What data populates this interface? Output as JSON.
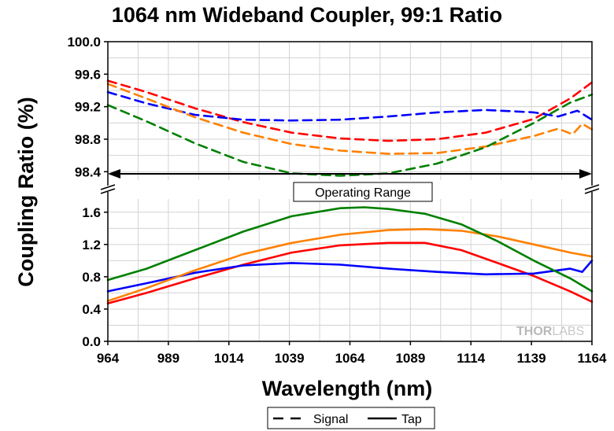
{
  "chart_data": {
    "type": "line",
    "title": "1064 nm Wideband Coupler, 99:1 Ratio",
    "xlabel": "Wavelength (nm)",
    "ylabel": "Coupling Ratio (%)",
    "xlim": [
      964,
      1164
    ],
    "x_ticks": [
      964,
      989,
      1014,
      1039,
      1064,
      1089,
      1114,
      1139,
      1164
    ],
    "x_tick_labels": [
      "964",
      "989",
      "1014",
      "1039",
      "1064",
      "1089",
      "1114",
      "1139",
      "1164"
    ],
    "grid": true,
    "broken_y_axis": true,
    "upper_panel": {
      "ylim": [
        98.2,
        100.0
      ],
      "y_ticks": [
        98.4,
        98.8,
        99.2,
        99.6,
        100.0
      ],
      "y_tick_labels": [
        "98.4",
        "98.8",
        "99.2",
        "99.6",
        "100.0"
      ]
    },
    "lower_panel": {
      "ylim": [
        0.0,
        1.9
      ],
      "y_ticks": [
        0.0,
        0.4,
        0.8,
        1.2,
        1.6
      ],
      "y_tick_labels": [
        "0.0",
        "0.4",
        "0.8",
        "1.2",
        "1.6"
      ]
    },
    "annotation": {
      "text": "Operating Range",
      "x_from": 964,
      "x_to": 1164
    },
    "legend": {
      "position": "bottom-center",
      "entries": [
        {
          "label": "Signal",
          "style": "dashed"
        },
        {
          "label": "Tap",
          "style": "solid"
        }
      ]
    },
    "watermark": {
      "part1": "THOR",
      "part2": "LABS"
    },
    "series": [
      {
        "color": "#ff0000",
        "style": "dashed",
        "panel": "upper",
        "x": [
          964,
          980,
          1000,
          1020,
          1040,
          1060,
          1080,
          1100,
          1120,
          1140,
          1155,
          1164
        ],
        "y": [
          99.52,
          99.38,
          99.18,
          99.01,
          98.88,
          98.81,
          98.78,
          98.8,
          98.88,
          99.05,
          99.3,
          99.5
        ]
      },
      {
        "color": "#0000ff",
        "style": "dashed",
        "panel": "upper",
        "x": [
          964,
          980,
          1000,
          1020,
          1040,
          1060,
          1080,
          1100,
          1120,
          1140,
          1150,
          1158,
          1164
        ],
        "y": [
          99.38,
          99.24,
          99.1,
          99.04,
          99.03,
          99.04,
          99.08,
          99.13,
          99.16,
          99.13,
          99.08,
          99.15,
          99.04
        ]
      },
      {
        "color": "#ff8000",
        "style": "dashed",
        "panel": "upper",
        "x": [
          964,
          980,
          1000,
          1020,
          1040,
          1060,
          1080,
          1100,
          1120,
          1140,
          1150,
          1156,
          1160,
          1164
        ],
        "y": [
          99.48,
          99.3,
          99.07,
          98.88,
          98.74,
          98.66,
          98.62,
          98.63,
          98.71,
          98.84,
          98.93,
          98.86,
          98.99,
          98.92
        ]
      },
      {
        "color": "#008000",
        "style": "dashed",
        "panel": "upper",
        "x": [
          964,
          980,
          1000,
          1020,
          1040,
          1060,
          1080,
          1100,
          1120,
          1140,
          1155,
          1164
        ],
        "y": [
          99.22,
          99.02,
          98.75,
          98.52,
          98.38,
          98.35,
          98.38,
          98.5,
          98.7,
          99.0,
          99.25,
          99.35
        ]
      },
      {
        "color": "#ff0000",
        "style": "solid",
        "panel": "lower",
        "x": [
          964,
          980,
          1000,
          1020,
          1040,
          1060,
          1080,
          1095,
          1110,
          1125,
          1140,
          1155,
          1164
        ],
        "y": [
          0.47,
          0.6,
          0.78,
          0.95,
          1.1,
          1.19,
          1.22,
          1.22,
          1.13,
          0.97,
          0.81,
          0.62,
          0.49
        ]
      },
      {
        "color": "#0000ff",
        "style": "solid",
        "panel": "lower",
        "x": [
          964,
          980,
          1000,
          1020,
          1040,
          1060,
          1080,
          1100,
          1120,
          1140,
          1155,
          1160,
          1164
        ],
        "y": [
          0.62,
          0.72,
          0.85,
          0.94,
          0.97,
          0.95,
          0.9,
          0.86,
          0.83,
          0.84,
          0.9,
          0.86,
          1.0
        ]
      },
      {
        "color": "#ff8000",
        "style": "solid",
        "panel": "lower",
        "x": [
          964,
          980,
          1000,
          1020,
          1040,
          1060,
          1080,
          1095,
          1110,
          1125,
          1140,
          1155,
          1164
        ],
        "y": [
          0.5,
          0.66,
          0.88,
          1.08,
          1.22,
          1.32,
          1.38,
          1.39,
          1.37,
          1.3,
          1.2,
          1.1,
          1.05
        ]
      },
      {
        "color": "#008000",
        "style": "solid",
        "panel": "lower",
        "x": [
          964,
          980,
          1000,
          1020,
          1040,
          1060,
          1070,
          1080,
          1095,
          1110,
          1125,
          1140,
          1155,
          1164
        ],
        "y": [
          0.76,
          0.9,
          1.13,
          1.36,
          1.55,
          1.65,
          1.66,
          1.64,
          1.58,
          1.45,
          1.24,
          1.0,
          0.78,
          0.62
        ]
      }
    ]
  }
}
